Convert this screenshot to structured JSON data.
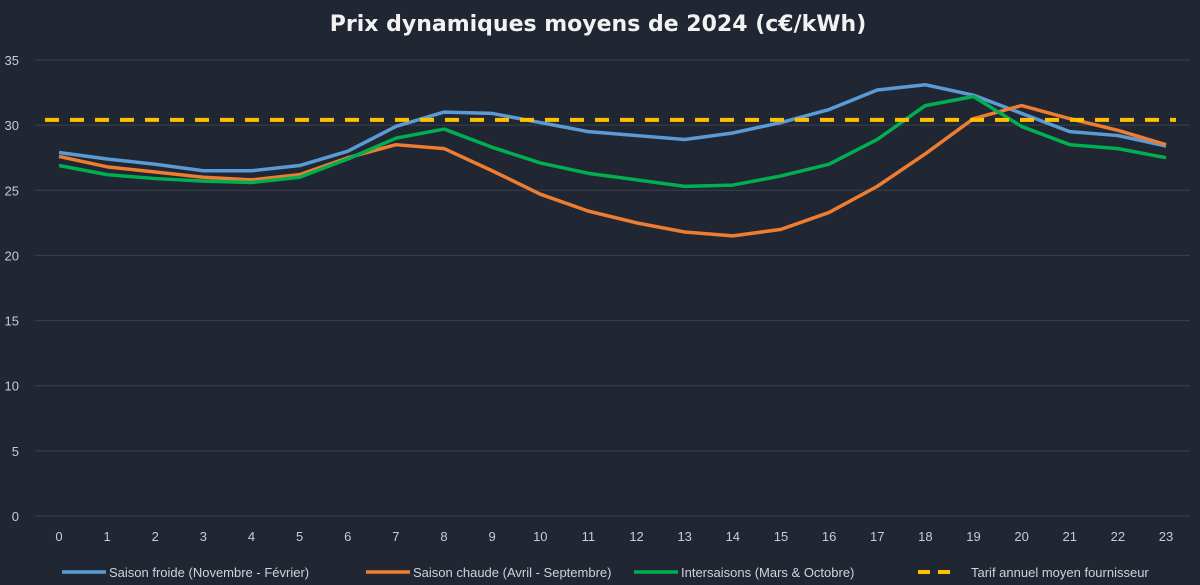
{
  "chart_data": {
    "type": "line",
    "title": "Prix dynamiques moyens de 2024 (c€/kWh)",
    "xlabel": "",
    "ylabel": "",
    "x": [
      0,
      1,
      2,
      3,
      4,
      5,
      6,
      7,
      8,
      9,
      10,
      11,
      12,
      13,
      14,
      15,
      16,
      17,
      18,
      19,
      20,
      21,
      22,
      23
    ],
    "ylim": [
      0,
      35
    ],
    "yticks": [
      0,
      5,
      10,
      15,
      20,
      25,
      30,
      35
    ],
    "grid": true,
    "legend_position": "bottom",
    "series": [
      {
        "name": "Saison froide (Novembre - Février)",
        "color": "#5b9bd5",
        "dashed": false,
        "values": [
          27.9,
          27.4,
          27.0,
          26.5,
          26.5,
          26.9,
          28.0,
          29.9,
          31.0,
          30.9,
          30.2,
          29.5,
          29.2,
          28.9,
          29.4,
          30.2,
          31.2,
          32.7,
          33.1,
          32.3,
          30.9,
          29.5,
          29.2,
          28.4
        ]
      },
      {
        "name": "Saison chaude (Avril - Septembre)",
        "color": "#ed7d31",
        "dashed": false,
        "values": [
          27.6,
          26.8,
          26.4,
          26.0,
          25.8,
          26.2,
          27.5,
          28.5,
          28.2,
          26.5,
          24.7,
          23.4,
          22.5,
          21.8,
          21.5,
          22.0,
          23.3,
          25.3,
          27.8,
          30.5,
          31.5,
          30.5,
          29.6,
          28.5
        ]
      },
      {
        "name": "Intersaisons (Mars & Octobre)",
        "color": "#00b050",
        "dashed": false,
        "values": [
          26.9,
          26.2,
          25.9,
          25.7,
          25.6,
          26.0,
          27.4,
          29.0,
          29.7,
          28.3,
          27.1,
          26.3,
          25.8,
          25.3,
          25.4,
          26.1,
          27.0,
          28.9,
          31.5,
          32.2,
          29.9,
          28.5,
          28.2,
          27.5
        ]
      },
      {
        "name": "Tarif annuel moyen fournisseur",
        "color": "#ffc000",
        "dashed": true,
        "values": [
          30.4,
          30.4,
          30.4,
          30.4,
          30.4,
          30.4,
          30.4,
          30.4,
          30.4,
          30.4,
          30.4,
          30.4,
          30.4,
          30.4,
          30.4,
          30.4,
          30.4,
          30.4,
          30.4,
          30.4,
          30.4,
          30.4,
          30.4,
          30.4
        ]
      }
    ]
  }
}
